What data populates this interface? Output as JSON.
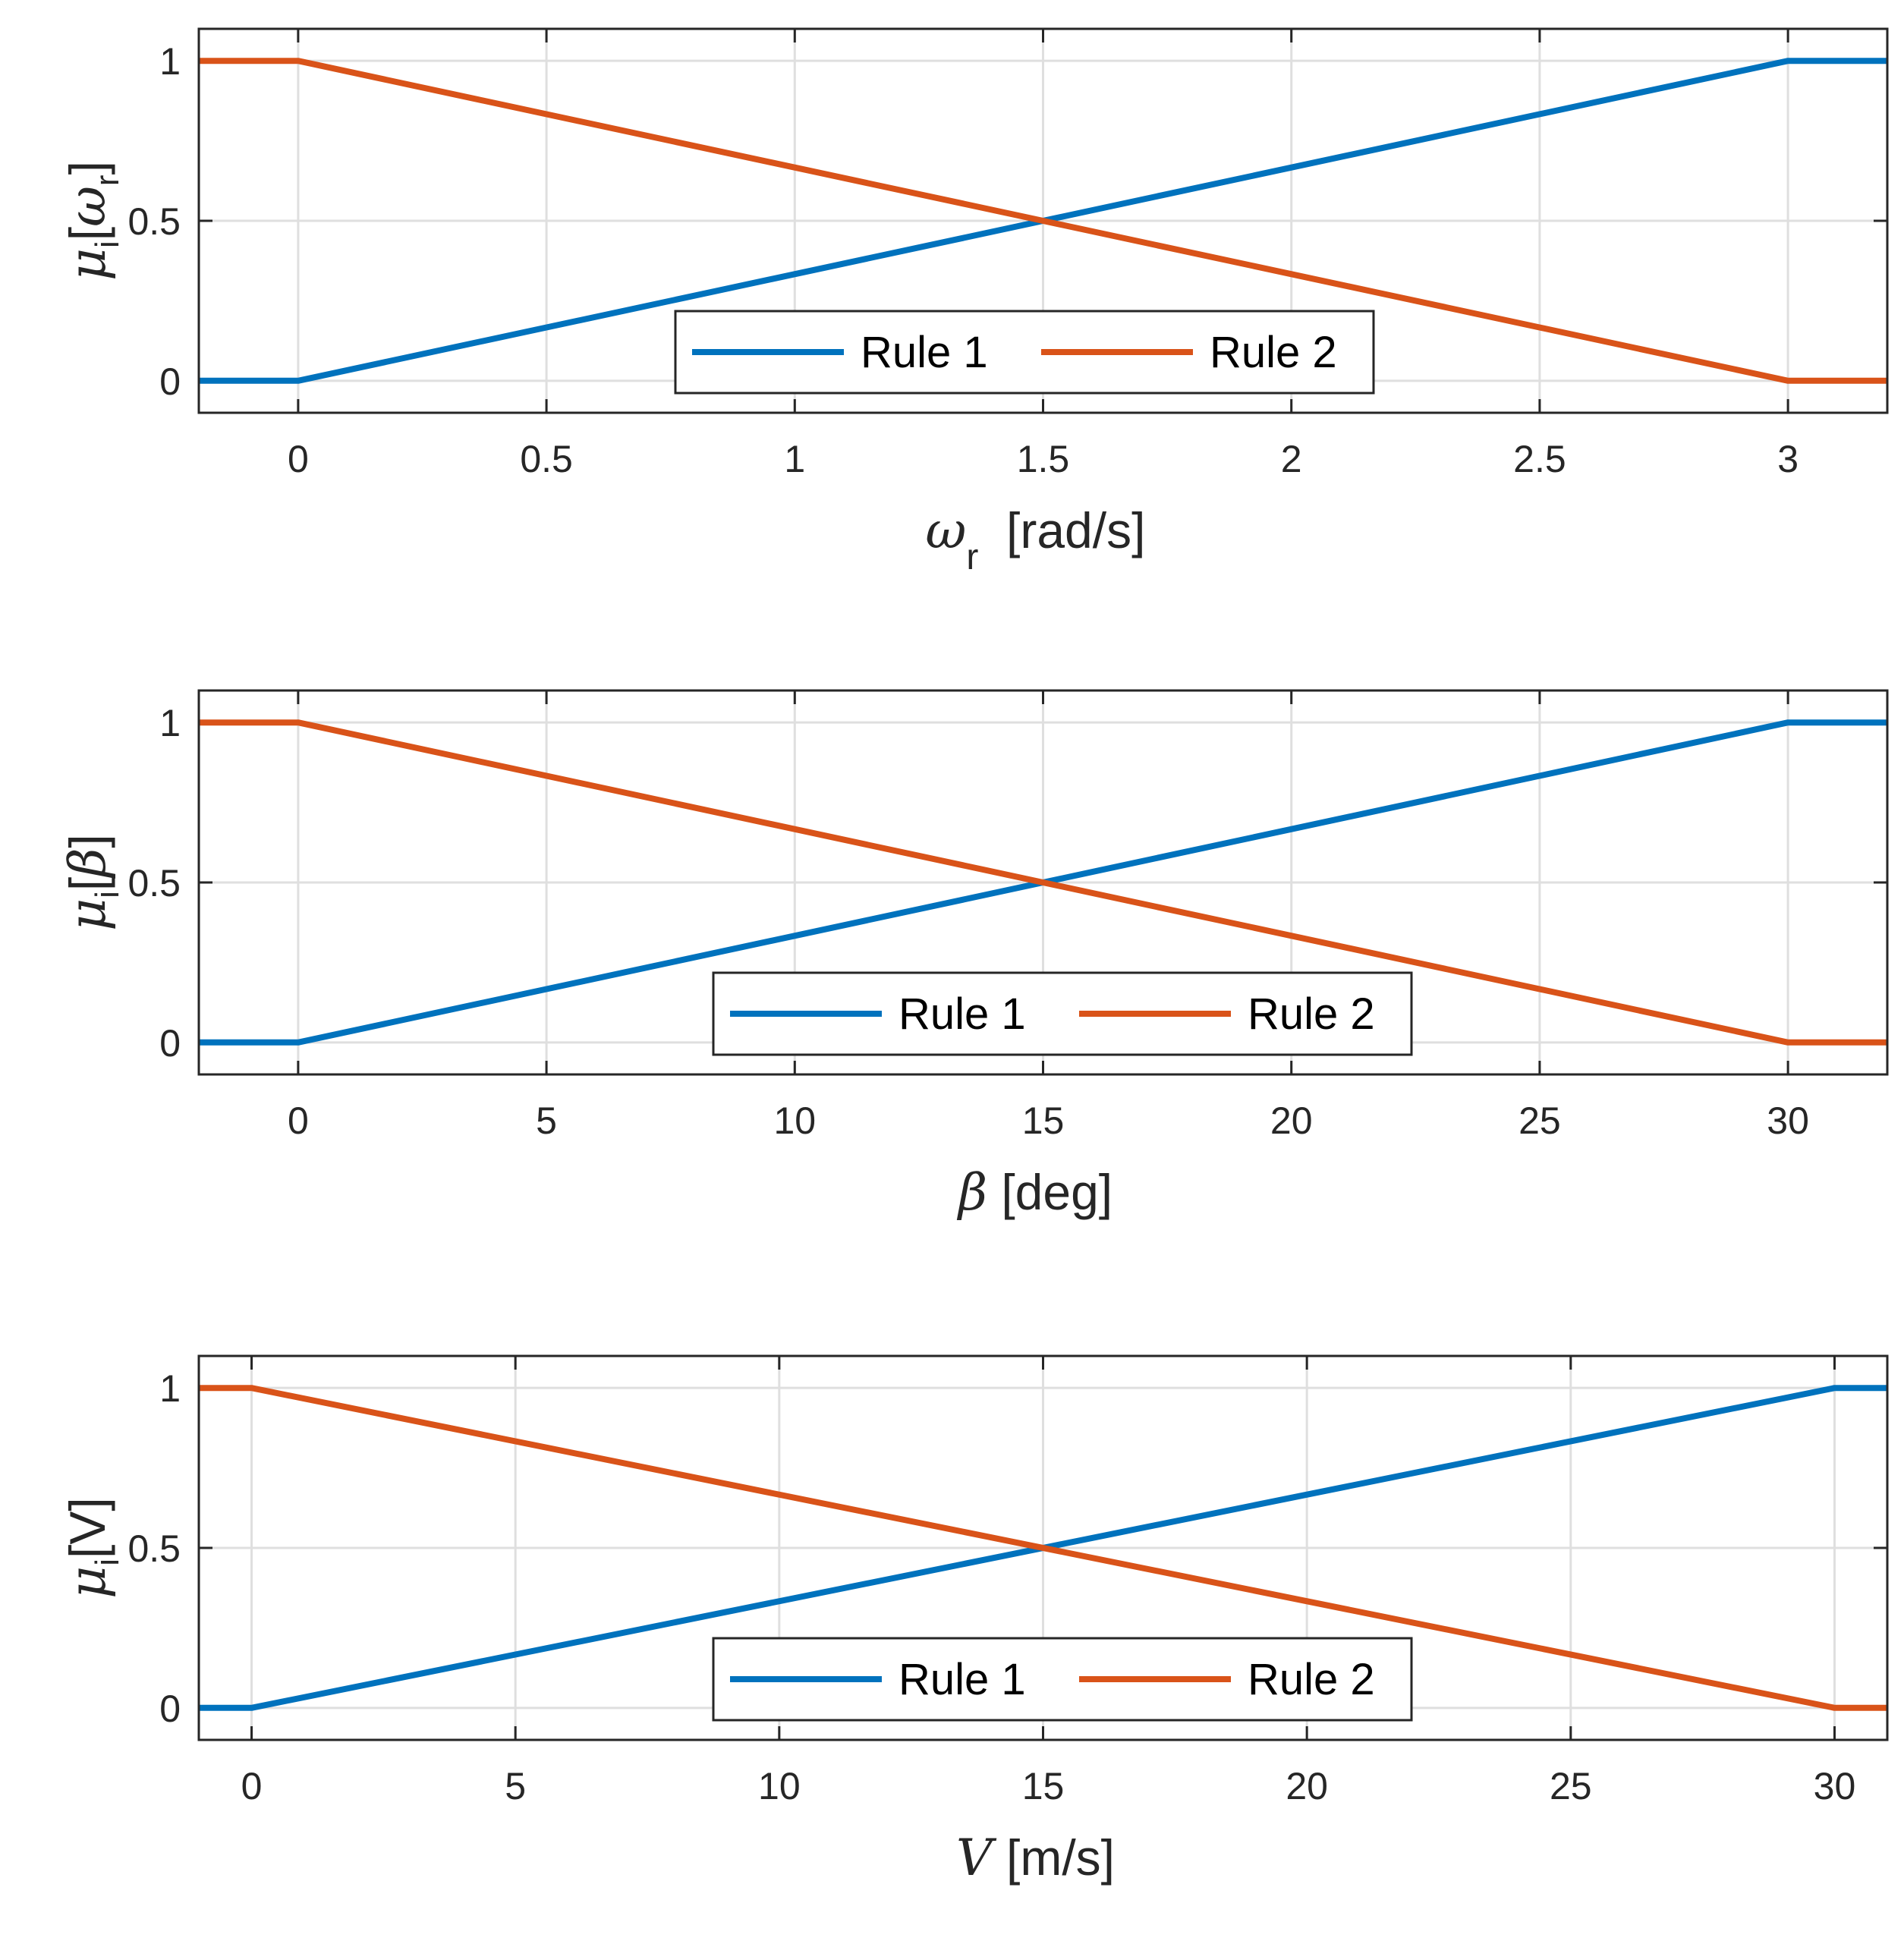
{
  "chart_data": [
    {
      "type": "line",
      "id": "omega",
      "xlim": [
        -0.2,
        3.2
      ],
      "ylim": [
        -0.1,
        1.1
      ],
      "xticks": [
        0,
        0.5,
        1,
        1.5,
        2,
        2.5,
        3
      ],
      "xtick_labels": [
        "0",
        "0.5",
        "1",
        "1.5",
        "2",
        "2.5",
        "3"
      ],
      "yticks": [
        0,
        0.5,
        1
      ],
      "ytick_labels": [
        "0",
        "0.5",
        "1"
      ],
      "xlabel": {
        "main": "ω",
        "sub": "r",
        "unit": " [rad/s]"
      },
      "ylabel": {
        "main": "μ",
        "sub": "i",
        "arg": "ω",
        "arg_sub": "r"
      },
      "grid": true,
      "legend": {
        "position": "bottom-center",
        "entries": [
          "Rule 1",
          "Rule 2"
        ]
      },
      "series": [
        {
          "name": "Rule 1",
          "color": "#0072BD",
          "x": [
            -0.2,
            0,
            3,
            3.2
          ],
          "y": [
            0,
            0,
            1,
            1
          ]
        },
        {
          "name": "Rule 2",
          "color": "#D95319",
          "x": [
            -0.2,
            0,
            3,
            3.2
          ],
          "y": [
            1,
            1,
            0,
            0
          ]
        }
      ]
    },
    {
      "type": "line",
      "id": "beta",
      "xlim": [
        -2,
        32
      ],
      "ylim": [
        -0.1,
        1.1
      ],
      "xticks": [
        0,
        5,
        10,
        15,
        20,
        25,
        30
      ],
      "xtick_labels": [
        "0",
        "5",
        "10",
        "15",
        "20",
        "25",
        "30"
      ],
      "yticks": [
        0,
        0.5,
        1
      ],
      "ytick_labels": [
        "0",
        "0.5",
        "1"
      ],
      "xlabel": {
        "main": "β",
        "sub": "",
        "unit": " [deg]"
      },
      "ylabel": {
        "main": "μ",
        "sub": "i",
        "arg": "β",
        "arg_sub": ""
      },
      "grid": true,
      "legend": {
        "position": "bottom-center",
        "entries": [
          "Rule 1",
          "Rule 2"
        ]
      },
      "series": [
        {
          "name": "Rule 1",
          "color": "#0072BD",
          "x": [
            -2,
            0,
            30,
            32
          ],
          "y": [
            0,
            0,
            1,
            1
          ]
        },
        {
          "name": "Rule 2",
          "color": "#D95319",
          "x": [
            -2,
            0,
            30,
            32
          ],
          "y": [
            1,
            1,
            0,
            0
          ]
        }
      ]
    },
    {
      "type": "line",
      "id": "wind",
      "xlim": [
        -1,
        31
      ],
      "ylim": [
        -0.1,
        1.1
      ],
      "xticks": [
        0,
        5,
        10,
        15,
        20,
        25,
        30
      ],
      "xtick_labels": [
        "0",
        "5",
        "10",
        "15",
        "20",
        "25",
        "30"
      ],
      "yticks": [
        0,
        0.5,
        1
      ],
      "ytick_labels": [
        "0",
        "0.5",
        "1"
      ],
      "xlabel": {
        "main": "V",
        "sub": "",
        "unit": " [m/s]"
      },
      "ylabel": {
        "main": "μ",
        "sub": "i",
        "arg": "V",
        "arg_sub": ""
      },
      "grid": true,
      "legend": {
        "position": "bottom-center",
        "entries": [
          "Rule 1",
          "Rule 2"
        ]
      },
      "series": [
        {
          "name": "Rule 1",
          "color": "#0072BD",
          "x": [
            -1,
            0,
            30,
            31
          ],
          "y": [
            0,
            0,
            1,
            1
          ]
        },
        {
          "name": "Rule 2",
          "color": "#D95319",
          "x": [
            -1,
            0,
            30,
            31
          ],
          "y": [
            1,
            1,
            0,
            0
          ]
        }
      ]
    }
  ]
}
